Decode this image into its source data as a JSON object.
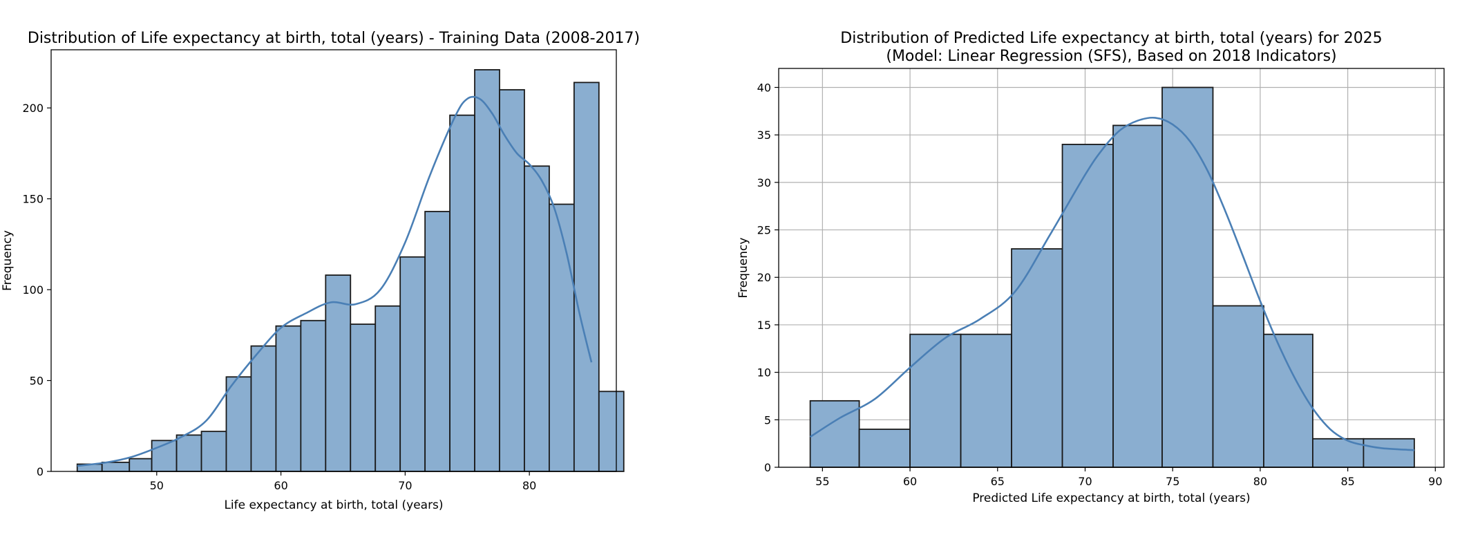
{
  "chart_data": [
    {
      "type": "bar",
      "subtype": "histogram-with-kde",
      "title": "Distribution of Life expectancy at birth, total (years) - Training Data (2008-2017)",
      "xlabel": "Life expectancy at birth, total (years)",
      "ylabel": "Frequency",
      "xlim": [
        41.5,
        87
      ],
      "ylim": [
        0,
        232
      ],
      "xticks": [
        50,
        60,
        70,
        80
      ],
      "yticks": [
        0,
        50,
        100,
        150,
        200
      ],
      "grid": false,
      "bar_color": "#8aaed0",
      "kde_color": "#4a7fb5",
      "bins": [
        {
          "start": 43.6,
          "end": 45.6,
          "count": 4
        },
        {
          "start": 45.6,
          "end": 47.8,
          "count": 5
        },
        {
          "start": 47.8,
          "end": 49.6,
          "count": 7
        },
        {
          "start": 49.6,
          "end": 51.6,
          "count": 17
        },
        {
          "start": 51.6,
          "end": 53.6,
          "count": 20
        },
        {
          "start": 53.6,
          "end": 55.6,
          "count": 22
        },
        {
          "start": 55.6,
          "end": 57.6,
          "count": 52
        },
        {
          "start": 57.6,
          "end": 59.6,
          "count": 69
        },
        {
          "start": 59.6,
          "end": 61.6,
          "count": 80
        },
        {
          "start": 61.6,
          "end": 63.6,
          "count": 83
        },
        {
          "start": 63.6,
          "end": 65.6,
          "count": 108
        },
        {
          "start": 65.6,
          "end": 67.6,
          "count": 81
        },
        {
          "start": 67.6,
          "end": 69.6,
          "count": 91
        },
        {
          "start": 69.6,
          "end": 71.6,
          "count": 118
        },
        {
          "start": 71.6,
          "end": 73.6,
          "count": 143
        },
        {
          "start": 73.6,
          "end": 75.6,
          "count": 196
        },
        {
          "start": 75.6,
          "end": 77.6,
          "count": 221
        },
        {
          "start": 77.6,
          "end": 79.6,
          "count": 210
        },
        {
          "start": 79.6,
          "end": 81.6,
          "count": 168
        },
        {
          "start": 81.6,
          "end": 83.6,
          "count": 147
        },
        {
          "start": 83.6,
          "end": 85.6,
          "count": 214
        },
        {
          "start": 85.6,
          "end": 87.6,
          "count": 44
        }
      ],
      "kde": {
        "x": [
          43.6,
          46,
          48,
          50,
          52,
          54,
          56,
          58,
          60,
          62,
          64,
          66,
          68,
          70,
          72,
          74,
          75,
          76,
          77,
          78,
          79,
          80,
          81,
          82,
          83,
          84,
          85
        ],
        "y": [
          3,
          5,
          8,
          13,
          19,
          28,
          47,
          64,
          79,
          87,
          93,
          92,
          100,
          126,
          163,
          195,
          205,
          205,
          197,
          185,
          175,
          169,
          160,
          145,
          120,
          88,
          60
        ]
      }
    },
    {
      "type": "bar",
      "subtype": "histogram-with-kde",
      "title": "Distribution of Predicted Life expectancy at birth, total (years) for 2025",
      "subtitle": "(Model: Linear Regression (SFS), Based on 2018 Indicators)",
      "xlabel": "Predicted Life expectancy at birth, total (years)",
      "ylabel": "Frequency",
      "xlim": [
        52.5,
        90.5
      ],
      "ylim": [
        0,
        42
      ],
      "xticks": [
        55,
        60,
        65,
        70,
        75,
        80,
        85,
        90
      ],
      "yticks": [
        0,
        5,
        10,
        15,
        20,
        25,
        30,
        35,
        40
      ],
      "grid": true,
      "bar_color": "#8aaed0",
      "kde_color": "#4a7fb5",
      "bins": [
        {
          "start": 54.3,
          "end": 57.1,
          "count": 7
        },
        {
          "start": 57.1,
          "end": 60.0,
          "count": 4
        },
        {
          "start": 60.0,
          "end": 62.9,
          "count": 14
        },
        {
          "start": 62.9,
          "end": 65.8,
          "count": 14
        },
        {
          "start": 65.8,
          "end": 68.7,
          "count": 23
        },
        {
          "start": 68.7,
          "end": 71.6,
          "count": 34
        },
        {
          "start": 71.6,
          "end": 74.4,
          "count": 36
        },
        {
          "start": 74.4,
          "end": 77.3,
          "count": 40
        },
        {
          "start": 77.3,
          "end": 80.2,
          "count": 17
        },
        {
          "start": 80.2,
          "end": 83.0,
          "count": 14
        },
        {
          "start": 83.0,
          "end": 85.9,
          "count": 3
        },
        {
          "start": 85.9,
          "end": 88.8,
          "count": 3
        }
      ],
      "kde": {
        "x": [
          54.3,
          56,
          58,
          60,
          62,
          64,
          66,
          68,
          70,
          71,
          72,
          73,
          74,
          75,
          76,
          77,
          78,
          79,
          80,
          81,
          82,
          83,
          84,
          85,
          86,
          87,
          88.8
        ],
        "y": [
          3.2,
          5.2,
          7.2,
          10.5,
          13.6,
          15.6,
          18.5,
          24.5,
          30.8,
          33.5,
          35.5,
          36.5,
          36.8,
          36.1,
          34.3,
          31.2,
          27.0,
          22.3,
          17.5,
          13.1,
          9.3,
          6.2,
          4.0,
          2.8,
          2.3,
          2.0,
          1.8
        ]
      }
    }
  ]
}
